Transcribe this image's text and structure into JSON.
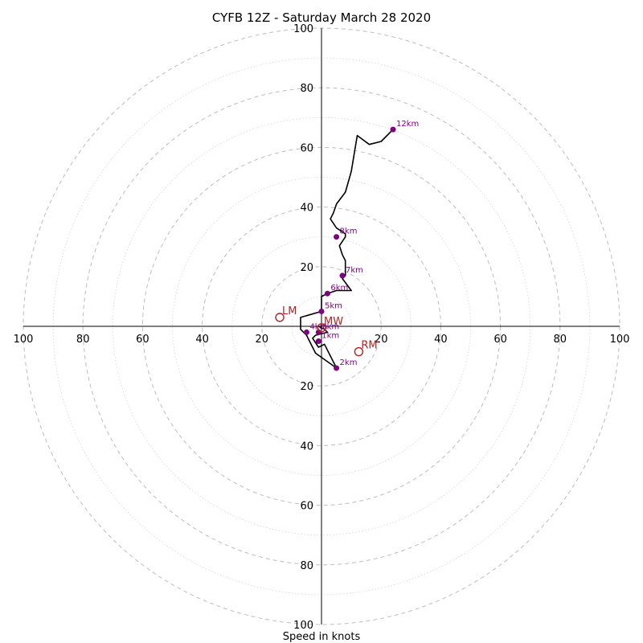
{
  "chart_data": {
    "type": "scatter",
    "title": "CYFB 12Z - Saturday March 28 2020",
    "xlabel": "Speed in knots",
    "ylabel": "",
    "xlim": [
      -100,
      100
    ],
    "ylim": [
      -100,
      100
    ],
    "rings_major": [
      20,
      40,
      60,
      80,
      100
    ],
    "rings_minor": [
      10,
      30,
      50,
      70,
      90
    ],
    "tick_labels": [
      "20",
      "40",
      "60",
      "80",
      "100"
    ],
    "colors": {
      "trace": "#000000",
      "height_points": "#800080",
      "storm_motion": "#b22222",
      "ring": "#bdbdbd"
    },
    "hodograph": {
      "u": [
        -1,
        1,
        2,
        -2,
        -3,
        -1,
        1,
        5,
        -2,
        -5,
        -6,
        -7,
        -7,
        0,
        0,
        2,
        5,
        10,
        7,
        8,
        8,
        7,
        6,
        8,
        8,
        5,
        3,
        4,
        5,
        8,
        10,
        11,
        12,
        16,
        20,
        24
      ],
      "v": [
        0,
        -1,
        -2,
        -3,
        -4,
        -7,
        -6,
        -14,
        -9,
        -3,
        -2,
        -1,
        3,
        5,
        10,
        11,
        12,
        12,
        16,
        17,
        22,
        24,
        27,
        30,
        31,
        33,
        36,
        38,
        41,
        45,
        52,
        58,
        64,
        61,
        62,
        66
      ]
    },
    "height_markers": [
      {
        "label": "1km",
        "u": -1,
        "v": -5
      },
      {
        "label": "2km",
        "u": 5,
        "v": -14
      },
      {
        "label": "3km",
        "u": -1,
        "v": -2
      },
      {
        "label": "4km",
        "u": -5,
        "v": -2
      },
      {
        "label": "5km",
        "u": 0,
        "v": 5
      },
      {
        "label": "6km",
        "u": 2,
        "v": 11
      },
      {
        "label": "7km",
        "u": 7,
        "v": 17
      },
      {
        "label": "8km",
        "u": 5,
        "v": 30
      },
      {
        "label": "12km",
        "u": 24,
        "v": 66
      }
    ],
    "storm_motion": [
      {
        "label": "LM",
        "u": -14,
        "v": 3
      },
      {
        "label": "RM",
        "u": 12.5,
        "v": -8.5
      },
      {
        "label": "MW",
        "u": 0,
        "v": -0.5
      }
    ]
  }
}
